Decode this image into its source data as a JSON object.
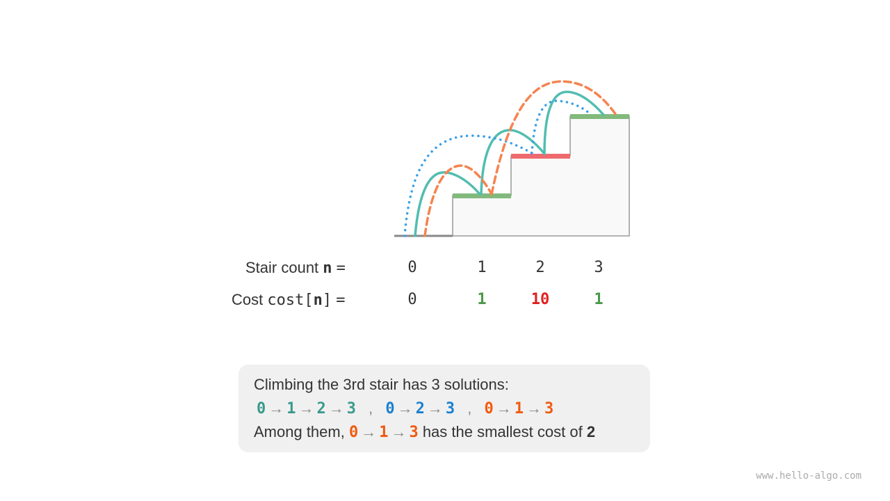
{
  "labels": {
    "stair_prefix": "Stair count ",
    "stair_var": "n",
    "eq": "=",
    "cost_prefix": "Cost ",
    "cost_var_a": "cost[",
    "cost_var_n": "n",
    "cost_var_b": "]"
  },
  "stairs": [
    "0",
    "1",
    "2",
    "3"
  ],
  "costs": [
    "0",
    "1",
    "10",
    "1"
  ],
  "cost_colors": [
    "#333333",
    "#4a9a4a",
    "#e02020",
    "#4a9a4a"
  ],
  "colors": {
    "teal_path": "#52bdb0",
    "blue_path": "#3aa0e8",
    "orange_path": "#f5834f",
    "green_step": "#82b97c",
    "red_step": "#ee6a6e"
  },
  "explanation": {
    "line1": "Climbing the 3rd stair has 3 solutions:",
    "path1": [
      "0",
      "1",
      "2",
      "3"
    ],
    "path2": [
      "0",
      "2",
      "3"
    ],
    "path3": [
      "0",
      "1",
      "3"
    ],
    "arrow": "→",
    "sep": ",",
    "line3_prefix": "Among them, ",
    "line3_suffix": " has the smallest cost of ",
    "min_cost": "2"
  },
  "watermark": "www.hello-algo.com"
}
